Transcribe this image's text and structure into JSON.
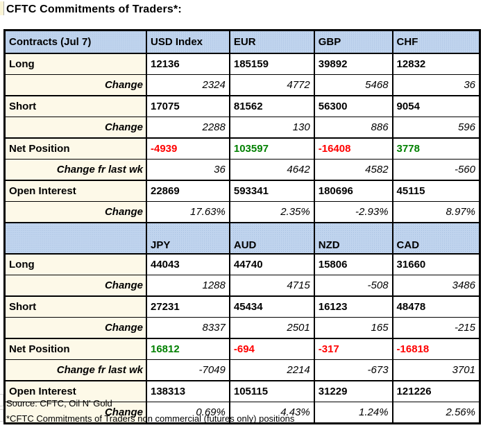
{
  "title": "CFTC Commitments of Traders*:",
  "footer": {
    "source": "Source: CFTC, Oil N' Gold",
    "note": "*CFTC Commitments of Traders non commercial (futures only) positions"
  },
  "colors": {
    "header_bg": "#c0d4ee",
    "label_bg": "#fdf9e8",
    "positive": "#008000",
    "negative": "#ff0000",
    "border": "#000000"
  },
  "chart_data": {
    "type": "table",
    "title": "CFTC Commitments of Traders*:",
    "sections": [
      {
        "columns": [
          "Contracts (Jul 7)",
          "USD Index",
          "EUR",
          "GBP",
          "CHF"
        ],
        "rows": [
          {
            "label": "Long",
            "style": "value",
            "values": [
              "12136",
              "185159",
              "39892",
              "12832"
            ]
          },
          {
            "label": "Change",
            "style": "change",
            "values": [
              "2324",
              "4772",
              "5468",
              "36"
            ]
          },
          {
            "label": "Short",
            "style": "value",
            "values": [
              "17075",
              "81562",
              "56300",
              "9054"
            ]
          },
          {
            "label": "Change",
            "style": "change",
            "values": [
              "2288",
              "130",
              "886",
              "596"
            ]
          },
          {
            "label": "Net Position",
            "style": "net",
            "values": [
              "-4939",
              "103597",
              "-16408",
              "3778"
            ]
          },
          {
            "label": "Change fr last wk",
            "style": "change",
            "values": [
              "36",
              "4642",
              "4582",
              "-560"
            ]
          },
          {
            "label": "Open Interest",
            "style": "value",
            "values": [
              "22869",
              "593341",
              "180696",
              "45115"
            ]
          },
          {
            "label": "Change",
            "style": "change",
            "values": [
              "17.63%",
              "2.35%",
              "-2.93%",
              "8.97%"
            ]
          }
        ]
      },
      {
        "columns": [
          "",
          "JPY",
          "AUD",
          "NZD",
          "CAD"
        ],
        "rows": [
          {
            "label": "Long",
            "style": "value",
            "values": [
              "44043",
              "44740",
              "15806",
              "31660"
            ]
          },
          {
            "label": "Change",
            "style": "change",
            "values": [
              "1288",
              "4715",
              "-508",
              "3486"
            ]
          },
          {
            "label": "Short",
            "style": "value",
            "values": [
              "27231",
              "45434",
              "16123",
              "48478"
            ]
          },
          {
            "label": "Change",
            "style": "change",
            "values": [
              "8337",
              "2501",
              "165",
              "-215"
            ]
          },
          {
            "label": "Net Position",
            "style": "net",
            "values": [
              "16812",
              "-694",
              "-317",
              "-16818"
            ]
          },
          {
            "label": "Change fr last wk",
            "style": "change",
            "values": [
              "-7049",
              "2214",
              "-673",
              "3701"
            ]
          },
          {
            "label": "Open Interest",
            "style": "value",
            "values": [
              "138313",
              "105115",
              "31229",
              "121226"
            ]
          },
          {
            "label": "Change",
            "style": "change",
            "values": [
              "0.69%",
              "4.43%",
              "1.24%",
              "2.56%"
            ]
          }
        ]
      }
    ]
  }
}
